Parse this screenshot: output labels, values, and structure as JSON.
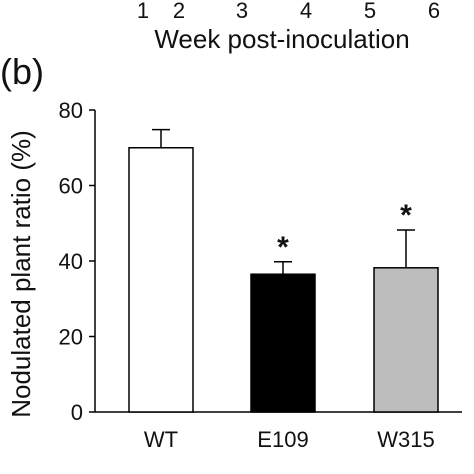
{
  "top_axis": {
    "tick_labels": [
      "1",
      "2",
      "3",
      "4",
      "5",
      "6"
    ],
    "label": "Week post-inoculation"
  },
  "panel_label": "(b)",
  "chart_data": {
    "type": "bar",
    "categories": [
      "WT",
      "E109",
      "W315"
    ],
    "values": [
      70,
      36.5,
      38.2
    ],
    "error_upper": [
      74.8,
      39.8,
      48.2
    ],
    "significance": [
      "",
      "*",
      "*"
    ],
    "bar_colors": [
      "#ffffff",
      "#000000",
      "#bdbdbd"
    ],
    "title": "",
    "xlabel": "",
    "ylabel": "Nodulated plant ratio (%)",
    "ylim": [
      0,
      80
    ],
    "yticks": [
      "0",
      "20",
      "40",
      "60",
      "80"
    ],
    "grid": false
  }
}
